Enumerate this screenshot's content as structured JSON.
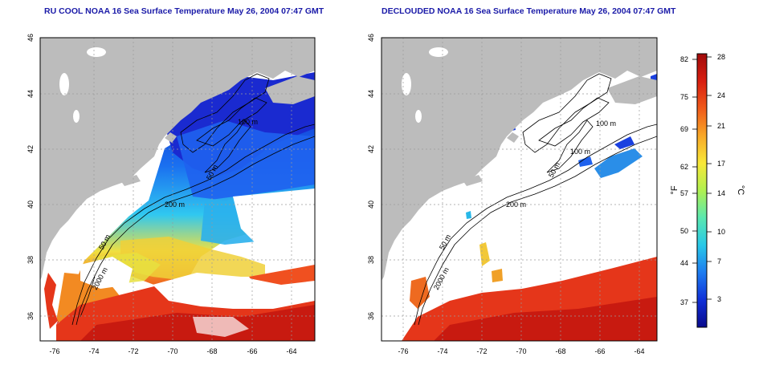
{
  "left_panel": {
    "title": "RU COOL NOAA 16 Sea Surface Temperature May 26, 2004 07:47 GMT",
    "x_ticks": [
      "-76",
      "-74",
      "-72",
      "-70",
      "-68",
      "-66",
      "-64"
    ],
    "y_ticks": [
      "36",
      "38",
      "40",
      "42",
      "44",
      "46"
    ],
    "contour_labels": [
      "100 m",
      "50 m",
      "200 m",
      "50 m",
      "2000 m"
    ]
  },
  "right_panel": {
    "title": "DECLOUDED NOAA 16 Sea Surface Temperature May 26, 2004 07:47 GMT",
    "x_ticks": [
      "-76",
      "-74",
      "-72",
      "-70",
      "-68",
      "-66",
      "-64"
    ],
    "y_ticks": [
      "36",
      "38",
      "40",
      "42",
      "44",
      "46"
    ],
    "contour_labels": [
      "100 m",
      "100 m",
      "50 m",
      "200 m",
      "50 m",
      "2000 m"
    ]
  },
  "colorbar": {
    "fahrenheit_label": "°F",
    "celsius_label": "°C",
    "fahrenheit_ticks": [
      "82",
      "75",
      "69",
      "62",
      "57",
      "50",
      "44",
      "37"
    ],
    "celsius_ticks": [
      "28",
      "24",
      "21",
      "17",
      "14",
      "10",
      "7",
      "3"
    ],
    "colors": [
      "#0a0a8c",
      "#1030d8",
      "#1e7cf0",
      "#28c8e8",
      "#5ae8b0",
      "#b0f050",
      "#f8e838",
      "#f8a828",
      "#f05a1a",
      "#d81e10",
      "#a00a0a"
    ]
  },
  "map": {
    "land_color": "#bcbcbc",
    "cloud_color": "#ffffff",
    "grid_color": "#9a9a9a",
    "lon_range": [
      -77,
      -63
    ],
    "lat_range": [
      35,
      46
    ],
    "grid_lons": [
      -76,
      -74,
      -72,
      -70,
      -68,
      -66,
      -64
    ],
    "grid_lats": [
      36,
      38,
      40,
      42,
      44
    ]
  }
}
